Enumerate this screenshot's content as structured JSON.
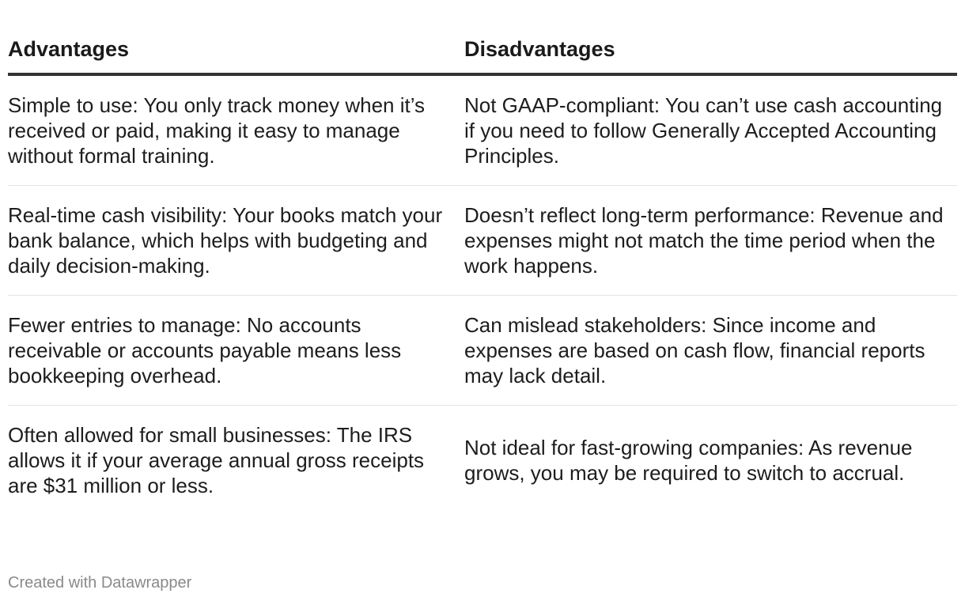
{
  "table": {
    "columns": [
      "Advantages",
      "Disadvantages"
    ],
    "rows": [
      {
        "advantage": "Simple to use: You only track money when it’s received or paid, making it easy to manage without formal training.",
        "disadvantage": "Not GAAP-compliant: You can’t use cash accounting if you need to follow Generally Accepted Accounting Principles."
      },
      {
        "advantage": "Real-time cash visibility: Your books match your bank balance, which helps with budgeting and daily decision-making.",
        "disadvantage": "Doesn’t reflect long-term performance: Revenue and expenses might not match the time period when the work happens."
      },
      {
        "advantage": "Fewer entries to manage: No accounts receivable or accounts payable means less bookkeeping overhead.",
        "disadvantage": "Can mislead stakeholders: Since income and expenses are based on cash flow, financial reports may lack detail."
      },
      {
        "advantage": "Often allowed for small businesses: The IRS allows it if your average annual gross receipts are $31 million or less.",
        "disadvantage": "Not ideal for fast-growing companies: As revenue grows, you may be required to switch to accrual."
      }
    ]
  },
  "footer": {
    "credit": "Created with Datawrapper"
  }
}
